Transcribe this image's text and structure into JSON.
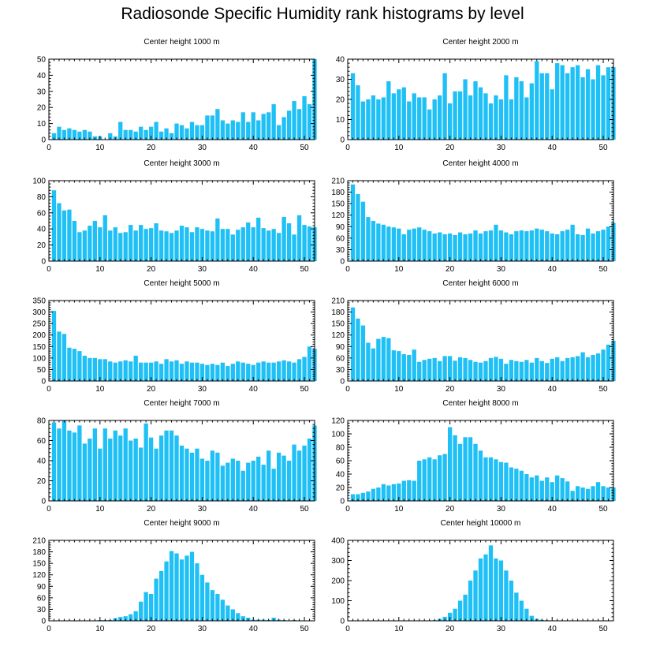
{
  "title": "Radiosonde Specific Humidity rank histograms by level",
  "chart_data": [
    {
      "type": "bar",
      "title": "Center height 1000 m",
      "xlim": [
        0,
        52
      ],
      "ylim": [
        0,
        50
      ],
      "x_ticks": [
        0,
        10,
        20,
        30,
        40,
        50
      ],
      "y_ticks": [
        0,
        10,
        20,
        30,
        40,
        50
      ],
      "values": [
        4,
        8,
        6,
        7,
        6,
        5,
        6,
        5,
        2,
        2,
        0,
        4,
        2,
        11,
        6,
        6,
        5,
        8,
        6,
        8,
        11,
        5,
        7,
        4,
        10,
        9,
        7,
        11,
        9,
        9,
        15,
        15,
        19,
        12,
        10,
        12,
        11,
        17,
        11,
        17,
        12,
        16,
        17,
        22,
        9,
        14,
        18,
        24,
        19,
        27,
        22,
        50
      ]
    },
    {
      "type": "bar",
      "title": "Center height 2000 m",
      "xlim": [
        0,
        52
      ],
      "ylim": [
        0,
        40
      ],
      "x_ticks": [
        0,
        10,
        20,
        30,
        40,
        50
      ],
      "y_ticks": [
        0,
        10,
        20,
        30,
        40
      ],
      "values": [
        33,
        27,
        19,
        20,
        22,
        20,
        21,
        29,
        23,
        25,
        26,
        19,
        23,
        21,
        21,
        15,
        20,
        22,
        33,
        18,
        24,
        24,
        30,
        22,
        29,
        26,
        23,
        18,
        22,
        20,
        32,
        20,
        31,
        29,
        21,
        28,
        39,
        33,
        33,
        25,
        38,
        37,
        33,
        36,
        37,
        31,
        35,
        30,
        37,
        32,
        36,
        36
      ]
    },
    {
      "type": "bar",
      "title": "Center height 3000 m",
      "xlim": [
        0,
        52
      ],
      "ylim": [
        0,
        100
      ],
      "x_ticks": [
        0,
        10,
        20,
        30,
        40,
        50
      ],
      "y_ticks": [
        0,
        20,
        40,
        60,
        80,
        100
      ],
      "values": [
        88,
        72,
        63,
        64,
        50,
        36,
        38,
        44,
        50,
        42,
        57,
        38,
        42,
        35,
        36,
        45,
        38,
        45,
        40,
        41,
        47,
        38,
        37,
        35,
        38,
        44,
        42,
        36,
        42,
        40,
        38,
        37,
        53,
        40,
        40,
        33,
        39,
        42,
        48,
        42,
        54,
        41,
        38,
        40,
        35,
        55,
        47,
        33,
        57,
        45,
        43,
        42
      ]
    },
    {
      "type": "bar",
      "title": "Center height 4000 m",
      "xlim": [
        0,
        52
      ],
      "ylim": [
        0,
        210
      ],
      "x_ticks": [
        0,
        10,
        20,
        30,
        40,
        50
      ],
      "y_ticks": [
        0,
        30,
        60,
        90,
        120,
        150,
        180,
        210
      ],
      "values": [
        200,
        175,
        155,
        115,
        105,
        98,
        95,
        90,
        88,
        85,
        70,
        82,
        85,
        88,
        82,
        78,
        72,
        75,
        70,
        72,
        68,
        75,
        70,
        72,
        80,
        72,
        78,
        80,
        95,
        80,
        75,
        70,
        78,
        80,
        78,
        80,
        85,
        82,
        78,
        72,
        70,
        78,
        82,
        95,
        70,
        68,
        85,
        72,
        78,
        82,
        90,
        100
      ]
    },
    {
      "type": "bar",
      "title": "Center height 5000 m",
      "xlim": [
        0,
        52
      ],
      "ylim": [
        0,
        350
      ],
      "x_ticks": [
        0,
        10,
        20,
        30,
        40,
        50
      ],
      "y_ticks": [
        0,
        50,
        100,
        150,
        200,
        250,
        300,
        350
      ],
      "values": [
        305,
        215,
        205,
        145,
        140,
        130,
        110,
        100,
        100,
        95,
        95,
        85,
        80,
        85,
        90,
        85,
        110,
        80,
        80,
        80,
        85,
        75,
        95,
        85,
        90,
        75,
        85,
        80,
        80,
        75,
        70,
        75,
        70,
        80,
        65,
        75,
        85,
        80,
        75,
        70,
        80,
        85,
        80,
        80,
        85,
        90,
        85,
        80,
        95,
        105,
        150,
        140
      ]
    },
    {
      "type": "bar",
      "title": "Center height 6000 m",
      "xlim": [
        0,
        52
      ],
      "ylim": [
        0,
        210
      ],
      "x_ticks": [
        0,
        10,
        20,
        30,
        40,
        50
      ],
      "y_ticks": [
        0,
        30,
        60,
        90,
        120,
        150,
        180,
        210
      ],
      "values": [
        192,
        163,
        145,
        100,
        85,
        110,
        115,
        112,
        80,
        78,
        70,
        68,
        82,
        50,
        55,
        58,
        60,
        52,
        65,
        65,
        53,
        62,
        60,
        55,
        50,
        48,
        52,
        60,
        63,
        58,
        45,
        55,
        52,
        50,
        55,
        48,
        60,
        52,
        47,
        58,
        62,
        52,
        60,
        62,
        65,
        75,
        62,
        68,
        72,
        82,
        95,
        105
      ]
    },
    {
      "type": "bar",
      "title": "Center height 7000 m",
      "xlim": [
        0,
        52
      ],
      "ylim": [
        0,
        80
      ],
      "x_ticks": [
        0,
        10,
        20,
        30,
        40,
        50
      ],
      "y_ticks": [
        0,
        20,
        40,
        60,
        80
      ],
      "values": [
        78,
        72,
        80,
        70,
        68,
        75,
        57,
        62,
        72,
        52,
        72,
        62,
        70,
        65,
        72,
        60,
        62,
        53,
        77,
        63,
        52,
        65,
        70,
        70,
        65,
        55,
        52,
        48,
        52,
        42,
        40,
        50,
        48,
        35,
        38,
        42,
        40,
        30,
        38,
        40,
        44,
        36,
        50,
        32,
        48,
        45,
        40,
        56,
        50,
        55,
        62,
        75
      ]
    },
    {
      "type": "bar",
      "title": "Center height 8000 m",
      "xlim": [
        0,
        52
      ],
      "ylim": [
        0,
        120
      ],
      "x_ticks": [
        0,
        10,
        20,
        30,
        40,
        50
      ],
      "y_ticks": [
        0,
        20,
        40,
        60,
        80,
        100,
        120
      ],
      "values": [
        10,
        10,
        12,
        14,
        18,
        20,
        25,
        23,
        25,
        26,
        30,
        31,
        30,
        60,
        62,
        65,
        62,
        68,
        70,
        110,
        98,
        85,
        95,
        95,
        85,
        75,
        65,
        65,
        62,
        58,
        57,
        50,
        48,
        45,
        40,
        35,
        38,
        30,
        35,
        28,
        38,
        34,
        29,
        15,
        22,
        20,
        18,
        22,
        28,
        22,
        20,
        20
      ]
    },
    {
      "type": "bar",
      "title": "Center height 9000 m",
      "xlim": [
        0,
        52
      ],
      "ylim": [
        0,
        210
      ],
      "x_ticks": [
        0,
        10,
        20,
        30,
        40,
        50
      ],
      "y_ticks": [
        0,
        30,
        60,
        90,
        120,
        150,
        180,
        210
      ],
      "values": [
        0,
        0,
        1,
        1,
        1,
        1,
        1,
        1,
        1,
        2,
        2,
        2,
        7,
        10,
        12,
        17,
        25,
        50,
        75,
        70,
        110,
        130,
        155,
        182,
        176,
        160,
        170,
        180,
        150,
        120,
        100,
        80,
        70,
        55,
        40,
        30,
        20,
        12,
        8,
        3,
        3,
        3,
        2,
        8,
        3,
        2,
        1,
        2,
        1,
        1,
        1,
        0
      ]
    },
    {
      "type": "bar",
      "title": "Center height 10000 m",
      "xlim": [
        0,
        52
      ],
      "ylim": [
        0,
        400
      ],
      "x_ticks": [
        0,
        10,
        20,
        30,
        40,
        50
      ],
      "y_ticks": [
        0,
        100,
        200,
        300,
        400
      ],
      "values": [
        0,
        0,
        0,
        0,
        0,
        0,
        0,
        0,
        0,
        0,
        0,
        0,
        0,
        0,
        0,
        1,
        3,
        10,
        20,
        40,
        60,
        100,
        130,
        200,
        250,
        310,
        330,
        375,
        310,
        300,
        250,
        200,
        140,
        100,
        60,
        25,
        10,
        5,
        3,
        2,
        1,
        1,
        1,
        1,
        1,
        1,
        1,
        1,
        1,
        1,
        0,
        0
      ]
    }
  ]
}
